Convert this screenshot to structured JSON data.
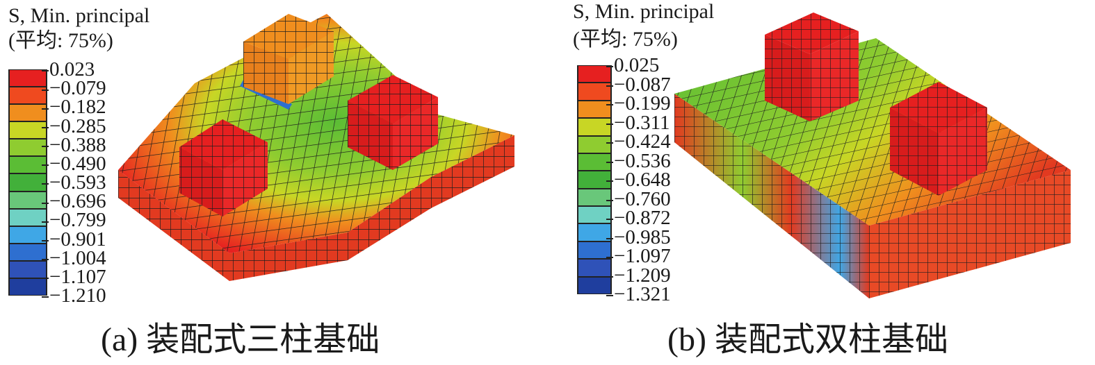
{
  "legend_colors": [
    "#e62020",
    "#ef4a1f",
    "#f08e1e",
    "#c8d625",
    "#8fcc30",
    "#5bbd35",
    "#42b03a",
    "#69c77a",
    "#6fd1c3",
    "#3fa7e6",
    "#2e6fd0",
    "#2f52b8",
    "#1f3e9e"
  ],
  "panel_a": {
    "legend_title_line1": "S, Min. principal",
    "legend_title_line2": "(平均: 75%)",
    "legend_values": [
      "0.023",
      "−0.079",
      "−0.182",
      "−0.285",
      "−0.388",
      "−0.490",
      "−0.593",
      "−0.696",
      "−0.799",
      "−0.901",
      "−1.004",
      "−1.107",
      "−1.210"
    ],
    "caption": "(a) 装配式三柱基础"
  },
  "panel_b": {
    "legend_title_line1": "S, Min. principal",
    "legend_title_line2": "(平均: 75%)",
    "legend_values": [
      "0.025",
      "−0.087",
      "−0.199",
      "−0.311",
      "−0.424",
      "−0.536",
      "−0.648",
      "−0.760",
      "−0.872",
      "−0.985",
      "−1.097",
      "−1.209",
      "−1.321"
    ],
    "caption": "(b) 装配式双柱基础"
  }
}
